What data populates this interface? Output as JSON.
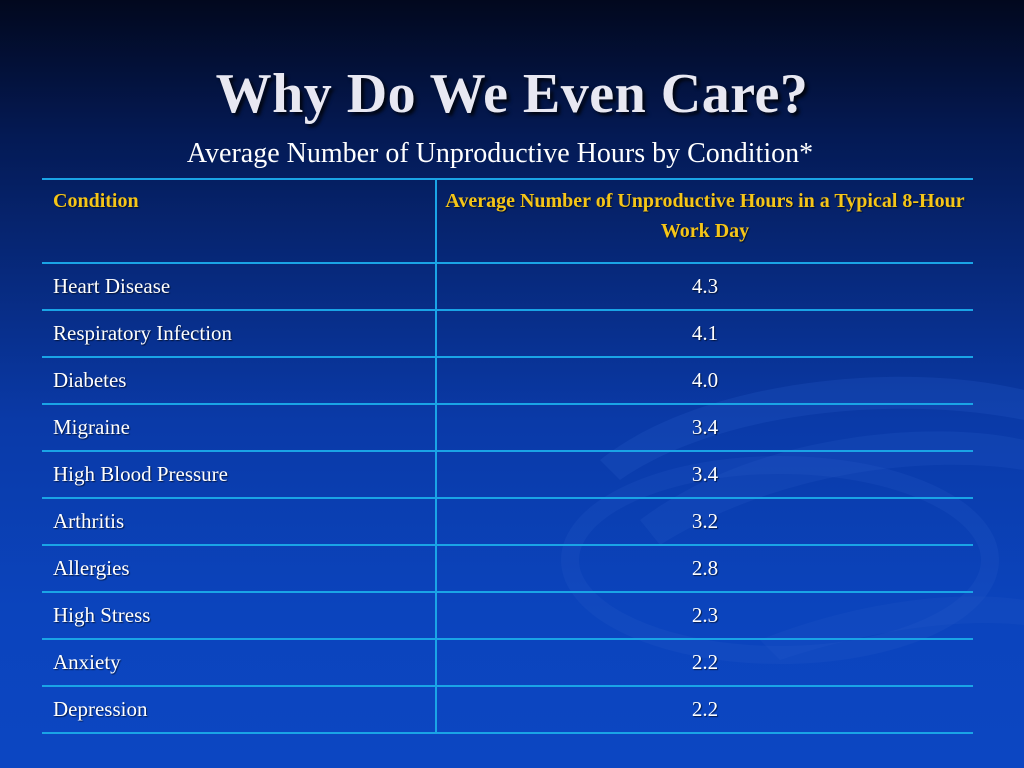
{
  "slide": {
    "title": "Why Do We Even Care?",
    "subtitle": "Average Number of Unproductive Hours by Condition*"
  },
  "table": {
    "headers": [
      "Condition",
      "Average Number of Unproductive Hours in a Typical 8-Hour Work Day"
    ],
    "rows": [
      {
        "condition": "Heart Disease",
        "hours": "4.3"
      },
      {
        "condition": "Respiratory Infection",
        "hours": "4.1"
      },
      {
        "condition": "Diabetes",
        "hours": "4.0"
      },
      {
        "condition": "Migraine",
        "hours": "3.4"
      },
      {
        "condition": "High Blood Pressure",
        "hours": "3.4"
      },
      {
        "condition": "Arthritis",
        "hours": "3.2"
      },
      {
        "condition": "Allergies",
        "hours": "2.8"
      },
      {
        "condition": "High Stress",
        "hours": "2.3"
      },
      {
        "condition": "Anxiety",
        "hours": "2.2"
      },
      {
        "condition": "Depression",
        "hours": "2.2"
      }
    ]
  },
  "colors": {
    "header_text": "#f5c518",
    "rule": "#1aa4e6",
    "background_top": "#02081e",
    "background_bottom": "#0c46c2"
  }
}
